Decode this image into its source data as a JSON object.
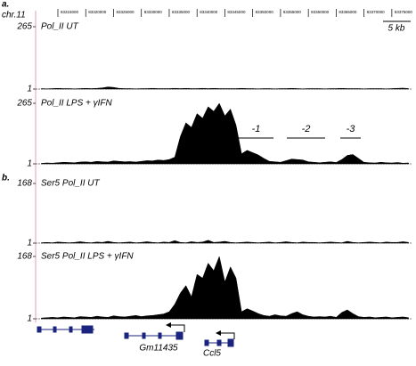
{
  "chart_data": {
    "type": "area",
    "x_label": "chr.11",
    "scale_bar": "5 kb",
    "xlim": [
      83311000,
      83378700
    ],
    "xticks": [
      83315000,
      83320000,
      83325000,
      83330000,
      83335000,
      83340000,
      83345000,
      83350000,
      83355000,
      83360000,
      83365000,
      83370000,
      83375000
    ],
    "x": [
      83312000,
      83313000,
      83314000,
      83315000,
      83316000,
      83317000,
      83318000,
      83319000,
      83320000,
      83321000,
      83322000,
      83323000,
      83324000,
      83325000,
      83326000,
      83327000,
      83328000,
      83329000,
      83330000,
      83331000,
      83332000,
      83333000,
      83334000,
      83335000,
      83336000,
      83337000,
      83338000,
      83339000,
      83340000,
      83341000,
      83342000,
      83343000,
      83344000,
      83345000,
      83346000,
      83347000,
      83348000,
      83349000,
      83350000,
      83351000,
      83352000,
      83353000,
      83354000,
      83355000,
      83356000,
      83357000,
      83358000,
      83359000,
      83360000,
      83361000,
      83362000,
      83363000,
      83364000,
      83365000,
      83366000,
      83367000,
      83368000,
      83369000,
      83370000,
      83371000,
      83372000,
      83373000,
      83374000,
      83375000,
      83376000,
      83377000,
      83378000
    ],
    "series": [
      {
        "name": "Pol_II UT",
        "panel": "a.",
        "color": "#000000",
        "ylim": [
          1,
          265
        ],
        "yticks": [
          1,
          265
        ],
        "values": [
          3,
          2,
          3,
          4,
          3,
          3,
          2,
          3,
          4,
          3,
          4,
          6,
          10,
          8,
          4,
          3,
          3,
          2,
          3,
          3,
          4,
          3,
          3,
          3,
          4,
          3,
          4,
          3,
          3,
          4,
          3,
          4,
          3,
          3,
          3,
          3,
          4,
          3,
          3,
          2,
          3,
          3,
          2,
          3,
          3,
          4,
          3,
          2,
          3,
          3,
          3,
          2,
          3,
          3,
          4,
          3,
          3,
          3,
          2,
          3,
          3,
          3,
          2,
          3,
          4,
          5,
          3
        ]
      },
      {
        "name": "Pol_II LPS + γIFN",
        "color": "#000000",
        "ylim": [
          1,
          265
        ],
        "yticks": [
          1,
          265
        ],
        "values": [
          3,
          5,
          4,
          6,
          8,
          7,
          6,
          9,
          10,
          8,
          12,
          10,
          9,
          14,
          12,
          10,
          11,
          9,
          12,
          15,
          14,
          18,
          16,
          20,
          30,
          120,
          180,
          160,
          220,
          200,
          250,
          230,
          265,
          210,
          240,
          170,
          45,
          60,
          50,
          40,
          25,
          12,
          10,
          8,
          15,
          22,
          20,
          18,
          10,
          8,
          6,
          8,
          10,
          7,
          20,
          38,
          42,
          25,
          8,
          6,
          5,
          8,
          6,
          5,
          7,
          4,
          5
        ],
        "annotations": [
          "-1",
          "-2",
          "-3"
        ]
      },
      {
        "name": "Ser5 Pol_II UT",
        "panel": "b.",
        "color": "#000000",
        "ylim": [
          1,
          168
        ],
        "yticks": [
          1,
          168
        ],
        "values": [
          2,
          3,
          2,
          4,
          3,
          2,
          3,
          5,
          3,
          2,
          4,
          3,
          6,
          3,
          2,
          3,
          4,
          2,
          3,
          5,
          3,
          2,
          4,
          3,
          8,
          3,
          2,
          5,
          3,
          4,
          9,
          3,
          4,
          6,
          3,
          2,
          3,
          4,
          3,
          2,
          3,
          4,
          2,
          3,
          5,
          3,
          2,
          4,
          3,
          3,
          2,
          3,
          4,
          3,
          2,
          6,
          3,
          2,
          3,
          4,
          3,
          2,
          4,
          3,
          3,
          5,
          3
        ]
      },
      {
        "name": "Ser5 Pol_II LPS + γIFN",
        "color": "#000000",
        "ylim": [
          1,
          168
        ],
        "yticks": [
          1,
          168
        ],
        "values": [
          3,
          4,
          5,
          4,
          6,
          5,
          4,
          7,
          6,
          5,
          8,
          6,
          5,
          9,
          7,
          6,
          8,
          10,
          7,
          9,
          10,
          12,
          14,
          20,
          40,
          70,
          90,
          60,
          120,
          110,
          150,
          130,
          168,
          100,
          140,
          110,
          20,
          28,
          22,
          15,
          10,
          8,
          12,
          9,
          8,
          15,
          20,
          12,
          8,
          6,
          7,
          6,
          8,
          5,
          18,
          25,
          15,
          7,
          5,
          6,
          4,
          5,
          6,
          4,
          5,
          6,
          4
        ]
      }
    ],
    "genes": [
      "Gm11435",
      "Ccl5"
    ]
  }
}
